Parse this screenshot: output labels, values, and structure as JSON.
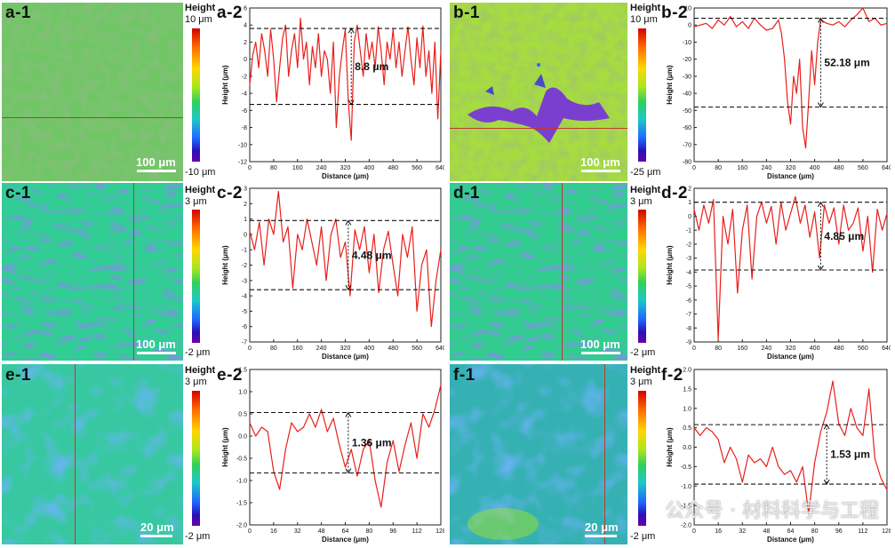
{
  "panels": {
    "a1": "a-1",
    "a2": "a-2",
    "b1": "b-1",
    "b2": "b-2",
    "c1": "c-1",
    "c2": "c-2",
    "d1": "d-1",
    "d2": "d-2",
    "e1": "e-1",
    "e2": "e-2",
    "f1": "f-1",
    "f2": "f-2"
  },
  "colorbars": {
    "a": {
      "title": "Height",
      "max": "10 μm",
      "min": "-10 μm"
    },
    "b": {
      "title": "Height",
      "max": "10 μm",
      "min": "-25 μm"
    },
    "c": {
      "title": "Height",
      "max": "3 μm",
      "min": "-2 μm"
    },
    "d": {
      "title": "Height",
      "max": "3 μm",
      "min": "-2 μm"
    },
    "e": {
      "title": "Height",
      "max": "3 μm",
      "min": "-2 μm"
    },
    "f": {
      "title": "Height",
      "max": "3 μm",
      "min": "-2 μm"
    }
  },
  "scalebars": {
    "a": "100 μm",
    "b": "100 μm",
    "c": "100 μm",
    "d": "100 μm",
    "e": "20 μm",
    "f": "20 μm"
  },
  "colors": {
    "line": "#e8201c",
    "dash": "#111111"
  },
  "watermark": "公众号 · 材料科学与工程",
  "chart_data": [
    {
      "panel": "a-2",
      "type": "line",
      "xlabel": "Distance (μm)",
      "ylabel": "Height (μm)",
      "xlim": [
        0,
        640
      ],
      "ylim": [
        -12,
        6
      ],
      "xticks": [
        0,
        80,
        160,
        240,
        320,
        400,
        480,
        560,
        640
      ],
      "yticks": [
        -12,
        -10,
        -8,
        -6,
        -4,
        -2,
        0,
        2,
        4,
        6
      ],
      "dashed_y": [
        3.6,
        -5.3
      ],
      "arrow_x": 340,
      "annotation": "8.8 μm",
      "series": [
        {
          "x": [
            0,
            10,
            20,
            30,
            40,
            50,
            60,
            70,
            80,
            90,
            100,
            110,
            120,
            130,
            140,
            150,
            160,
            170,
            180,
            190,
            200,
            210,
            220,
            230,
            240,
            250,
            260,
            270,
            280,
            290,
            300,
            310,
            320,
            330,
            340,
            350,
            360,
            370,
            380,
            390,
            400,
            410,
            420,
            430,
            440,
            450,
            460,
            470,
            480,
            490,
            500,
            510,
            520,
            530,
            540,
            550,
            560,
            570,
            580,
            590,
            600,
            610,
            620,
            630,
            640
          ],
          "values": [
            -3,
            0.5,
            2,
            -1,
            3,
            1,
            -2,
            3.5,
            0,
            -5,
            -1,
            2.5,
            4,
            -2,
            1,
            3,
            -1,
            4.8,
            0,
            2,
            -3,
            1.5,
            -1,
            3,
            -2,
            1,
            0,
            -4,
            2,
            -8,
            -2,
            1,
            3.5,
            -5,
            -9.5,
            2,
            4,
            1,
            -2,
            3,
            0,
            2,
            -1,
            3.8,
            1,
            -3,
            2,
            0,
            3.5,
            -1,
            2,
            -2,
            1,
            3.8,
            0,
            -3,
            2.5,
            -1,
            3.9,
            -2,
            1,
            -4,
            2,
            -7,
            1
          ]
        }
      ]
    },
    {
      "panel": "b-2",
      "type": "line",
      "xlabel": "Distance (μm)",
      "ylabel": "Height (μm)",
      "xlim": [
        0,
        640
      ],
      "ylim": [
        -80,
        10
      ],
      "xticks": [
        0,
        80,
        160,
        240,
        320,
        400,
        480,
        560,
        640
      ],
      "yticks": [
        -80,
        -70,
        -60,
        -50,
        -40,
        -30,
        -20,
        -10,
        0,
        10
      ],
      "dashed_y": [
        4,
        -48
      ],
      "arrow_x": 420,
      "annotation": "52.18 μm",
      "series": [
        {
          "x": [
            0,
            20,
            40,
            60,
            80,
            100,
            120,
            140,
            160,
            180,
            200,
            220,
            240,
            260,
            280,
            290,
            300,
            310,
            320,
            330,
            340,
            350,
            360,
            370,
            380,
            390,
            400,
            410,
            420,
            440,
            460,
            480,
            500,
            520,
            540,
            560,
            580,
            600,
            620,
            640
          ],
          "values": [
            -1,
            0,
            1,
            -2,
            3,
            0,
            5,
            -1,
            2,
            -2,
            4,
            0,
            -3,
            -2,
            3,
            -5,
            -20,
            -45,
            -58,
            -30,
            -40,
            -20,
            -60,
            -72,
            -45,
            -15,
            -35,
            -10,
            3,
            1,
            0,
            2,
            -1,
            3,
            6,
            10,
            2,
            4,
            0,
            1
          ]
        }
      ]
    },
    {
      "panel": "c-2",
      "type": "line",
      "xlabel": "Distance (μm)",
      "ylabel": "Height (μm)",
      "xlim": [
        0,
        640
      ],
      "ylim": [
        -7,
        3
      ],
      "xticks": [
        0,
        80,
        160,
        240,
        320,
        400,
        480,
        560,
        640
      ],
      "yticks": [
        -7,
        -6,
        -5,
        -4,
        -3,
        -2,
        -1,
        0,
        1,
        2,
        3
      ],
      "dashed_y": [
        0.9,
        -3.6
      ],
      "arrow_x": 330,
      "annotation": "4.48 μm",
      "series": [
        {
          "x": [
            0,
            16,
            32,
            48,
            64,
            80,
            96,
            112,
            128,
            144,
            160,
            176,
            192,
            208,
            224,
            240,
            256,
            272,
            288,
            304,
            320,
            336,
            352,
            368,
            384,
            400,
            416,
            432,
            448,
            464,
            480,
            496,
            512,
            528,
            544,
            560,
            576,
            592,
            608,
            624,
            640
          ],
          "values": [
            0.2,
            -1,
            0.8,
            -2,
            1,
            0,
            2.8,
            -0.5,
            0.5,
            -3.5,
            0,
            -1,
            1,
            -0.5,
            -2,
            0.5,
            -3,
            0,
            1,
            -1.5,
            -0.5,
            -4,
            0.3,
            -1,
            0.5,
            -2.5,
            0,
            -3.8,
            -1,
            0.2,
            -2,
            -4,
            0,
            -1.5,
            0.5,
            -5,
            -2,
            -1,
            -6,
            -3,
            -1
          ]
        }
      ]
    },
    {
      "panel": "d-2",
      "type": "line",
      "xlabel": "Distance (μm)",
      "ylabel": "Height (μm)",
      "xlim": [
        0,
        640
      ],
      "ylim": [
        -9,
        2
      ],
      "xticks": [
        0,
        80,
        160,
        240,
        320,
        400,
        480,
        560,
        640
      ],
      "yticks": [
        -9,
        -8,
        -7,
        -6,
        -5,
        -4,
        -3,
        -2,
        -1,
        0,
        1,
        2
      ],
      "dashed_y": [
        1.0,
        -3.85
      ],
      "arrow_x": 420,
      "annotation": "4.85 μm",
      "series": [
        {
          "x": [
            0,
            16,
            32,
            48,
            64,
            80,
            96,
            112,
            128,
            144,
            160,
            176,
            192,
            208,
            224,
            240,
            256,
            272,
            288,
            304,
            320,
            336,
            352,
            368,
            384,
            400,
            416,
            432,
            448,
            464,
            480,
            496,
            512,
            528,
            544,
            560,
            576,
            592,
            608,
            624,
            640
          ],
          "values": [
            0.5,
            -1,
            0.8,
            -0.5,
            1.2,
            -8.8,
            0,
            -2,
            0.5,
            -5.5,
            -1,
            0.8,
            -4.5,
            0,
            1,
            -0.5,
            0.7,
            -2,
            1,
            -1,
            0.2,
            1.4,
            -0.5,
            0.8,
            -1.5,
            0.3,
            -3,
            0.8,
            -0.5,
            0.6,
            -2,
            0.8,
            -1,
            -0.5,
            0.6,
            -2.5,
            0,
            -4,
            0.5,
            -1,
            0.2
          ]
        }
      ]
    },
    {
      "panel": "e-2",
      "type": "line",
      "xlabel": "Distance (μm)",
      "ylabel": "Height (μm)",
      "xlim": [
        0,
        128
      ],
      "ylim": [
        -2.0,
        1.5
      ],
      "xticks": [
        0,
        16,
        32,
        48,
        64,
        80,
        96,
        112,
        128
      ],
      "yticks": [
        -2.0,
        -1.5,
        -1.0,
        -0.5,
        0.0,
        0.5,
        1.0,
        1.5
      ],
      "dashed_y": [
        0.53,
        -0.83
      ],
      "arrow_x": 66,
      "annotation": "1.36 μm",
      "series": [
        {
          "x": [
            0,
            4,
            8,
            12,
            16,
            20,
            24,
            28,
            32,
            36,
            40,
            44,
            48,
            52,
            56,
            60,
            64,
            68,
            72,
            76,
            80,
            84,
            88,
            92,
            96,
            100,
            104,
            108,
            112,
            116,
            120,
            124,
            128
          ],
          "values": [
            0.3,
            0,
            0.2,
            0.1,
            -0.8,
            -1.2,
            -0.3,
            0.3,
            0.1,
            0.2,
            0.5,
            0.2,
            0.6,
            0.1,
            0.4,
            -0.2,
            -0.7,
            -0.3,
            -0.9,
            -0.3,
            -0.1,
            -1.0,
            -1.6,
            -0.6,
            -0.1,
            -0.8,
            -0.2,
            0.3,
            -0.5,
            0.5,
            0.2,
            0.6,
            1.15
          ]
        }
      ]
    },
    {
      "panel": "f-2",
      "type": "line",
      "xlabel": "Distance (μm)",
      "ylabel": "Height (μm)",
      "xlim": [
        0,
        128
      ],
      "ylim": [
        -2.0,
        2.0
      ],
      "xticks": [
        0,
        16,
        32,
        48,
        64,
        80,
        96,
        112,
        128
      ],
      "yticks": [
        -2.0,
        -1.5,
        -1.0,
        -0.5,
        0.0,
        0.5,
        1.0,
        1.5,
        2.0
      ],
      "dashed_y": [
        0.58,
        -0.95
      ],
      "arrow_x": 88,
      "annotation": "1.53 μm",
      "series": [
        {
          "x": [
            0,
            4,
            8,
            12,
            16,
            20,
            24,
            28,
            32,
            36,
            40,
            44,
            48,
            52,
            56,
            60,
            64,
            68,
            72,
            76,
            80,
            84,
            88,
            92,
            96,
            100,
            104,
            108,
            112,
            116,
            120,
            124,
            128
          ],
          "values": [
            0.5,
            0.3,
            0.5,
            0.4,
            0.2,
            -0.4,
            0,
            -0.3,
            -0.9,
            -0.2,
            -0.4,
            -0.3,
            -0.5,
            0,
            -0.5,
            -0.7,
            -0.6,
            -0.9,
            -0.5,
            -1.7,
            -0.4,
            0.4,
            0.9,
            1.7,
            0.6,
            0.3,
            1.0,
            0.5,
            0.3,
            1.5,
            -0.3,
            -0.8,
            -1.1
          ]
        }
      ]
    }
  ]
}
